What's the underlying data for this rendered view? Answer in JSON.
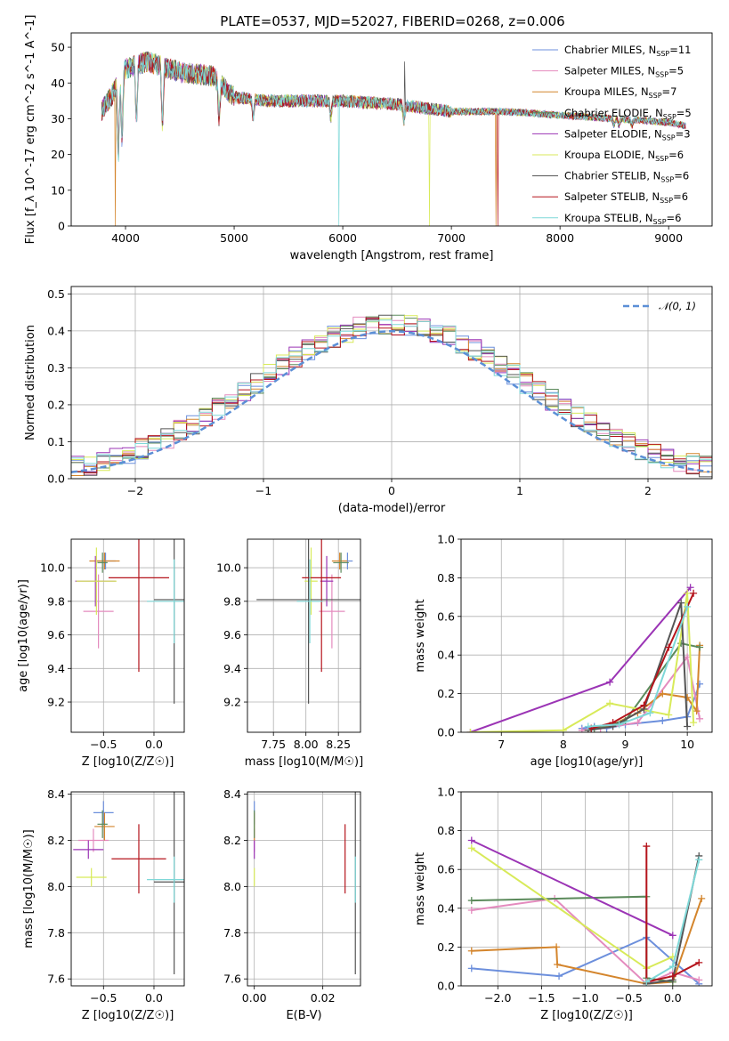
{
  "title": "PLATE=0537, MJD=52027, FIBERID=0268, z=0.006",
  "colors": [
    "#6c8fdc",
    "#e48bbe",
    "#d4852c",
    "#5b8a5b",
    "#9b34b5",
    "#d8ea59",
    "#555555",
    "#b5141c",
    "#7fd8d8"
  ],
  "models": [
    {
      "label": "Chabrier MILES, N",
      "n": "11"
    },
    {
      "label": "Salpeter MILES, N",
      "n": "5"
    },
    {
      "label": "Kroupa MILES, N",
      "n": "7"
    },
    {
      "label": "Chabrier ELODIE, N",
      "n": "5"
    },
    {
      "label": "Salpeter ELODIE, N",
      "n": "3"
    },
    {
      "label": "Kroupa ELODIE, N",
      "n": "6"
    },
    {
      "label": "Chabrier STELIB, N",
      "n": "6"
    },
    {
      "label": "Salpeter STELIB, N",
      "n": "6"
    },
    {
      "label": "Kroupa STELIB, N",
      "n": "6"
    }
  ],
  "legend_sub": "SSP",
  "chart_data": [
    {
      "id": "spectrum",
      "type": "line",
      "xlabel": "wavelength [Angstrom, rest frame]",
      "ylabel": "Flux [f_λ 10^-17 erg cm^-2 s^-1 A^-1]",
      "xlim": [
        3500,
        9400
      ],
      "ylim": [
        0,
        54
      ],
      "xticks": [
        4000,
        5000,
        6000,
        7000,
        8000,
        9000
      ],
      "yticks": [
        0,
        10,
        20,
        30,
        40,
        50
      ],
      "x_range_data": [
        3780,
        9160
      ],
      "continuum": [
        [
          3780,
          32
        ],
        [
          3900,
          38
        ],
        [
          4000,
          44
        ],
        [
          4200,
          46
        ],
        [
          4500,
          43
        ],
        [
          4800,
          42
        ],
        [
          5000,
          36
        ],
        [
          5300,
          35
        ],
        [
          5600,
          35
        ],
        [
          6000,
          35
        ],
        [
          6500,
          34
        ],
        [
          7000,
          32
        ],
        [
          7500,
          32
        ],
        [
          8000,
          31
        ],
        [
          8500,
          30
        ],
        [
          9000,
          29
        ],
        [
          9160,
          28
        ]
      ],
      "absorption": [
        [
          3934,
          18
        ],
        [
          3968,
          22
        ],
        [
          4101,
          28
        ],
        [
          4340,
          27
        ],
        [
          4861,
          30
        ],
        [
          5175,
          30
        ],
        [
          5890,
          30
        ],
        [
          6563,
          29
        ],
        [
          8498,
          28
        ],
        [
          8542,
          28
        ],
        [
          8662,
          28
        ]
      ],
      "glitches": [
        {
          "model": 2,
          "x": 3905,
          "y": 0
        },
        {
          "model": 8,
          "x": 5965,
          "y": 0
        },
        {
          "model": 5,
          "x": 6800,
          "y": 0
        },
        {
          "model": 2,
          "x": 7410,
          "y": 0
        },
        {
          "model": 6,
          "x": 6570,
          "y": 46
        },
        {
          "model": 7,
          "x": 7430,
          "y": 0
        }
      ],
      "legend": "top-right"
    },
    {
      "id": "residuals",
      "type": "histogram",
      "xlabel": "(data-model)/error",
      "ylabel": "Normed distribution",
      "xlim": [
        -2.5,
        2.5
      ],
      "ylim": [
        0,
        0.52
      ],
      "xticks": [
        -2,
        -1,
        0,
        1,
        2
      ],
      "yticks": [
        0.0,
        0.1,
        0.2,
        0.3,
        0.4,
        0.5
      ],
      "bin_width": 0.1,
      "gaussian_label": "𝒩(0, 1)",
      "legend": "top-right"
    },
    {
      "id": "age_vs_Z",
      "type": "errorbar",
      "xlabel": "Z [log10(Z/Z☉)]",
      "ylabel": "age [log10(age/yr)]",
      "xlim": [
        -0.82,
        0.3
      ],
      "ylim": [
        9.02,
        10.17
      ],
      "xticks": [
        -0.5,
        0.0
      ],
      "yticks": [
        9.2,
        9.4,
        9.6,
        9.8,
        10.0
      ],
      "points": [
        {
          "model": 0,
          "x": -0.48,
          "xerr": 0.1,
          "y": 10.04,
          "yerr": 0.05
        },
        {
          "model": 1,
          "x": -0.55,
          "xerr": 0.15,
          "y": 9.74,
          "yerr": 0.22
        },
        {
          "model": 2,
          "x": -0.49,
          "xerr": 0.15,
          "y": 10.04,
          "yerr": 0.05
        },
        {
          "model": 3,
          "x": -0.51,
          "xerr": 0.05,
          "y": 10.03,
          "yerr": 0.06
        },
        {
          "model": 4,
          "x": -0.58,
          "xerr": 0.2,
          "y": 9.92,
          "yerr": 0.15
        },
        {
          "model": 5,
          "x": -0.57,
          "xerr": 0.2,
          "y": 9.92,
          "yerr": 0.2
        },
        {
          "model": 6,
          "x": 0.2,
          "xerr": 0.2,
          "y": 9.81,
          "yerr": 0.62
        },
        {
          "model": 7,
          "x": -0.15,
          "xerr": 0.3,
          "y": 9.94,
          "yerr": 0.56
        },
        {
          "model": 8,
          "x": 0.2,
          "xerr": 0.27,
          "y": 9.8,
          "yerr": 0.25
        }
      ]
    },
    {
      "id": "age_vs_mass",
      "type": "errorbar",
      "xlabel": "mass [log10(M/M☉)]",
      "ylabel": "",
      "xlim": [
        7.55,
        8.42
      ],
      "ylim": [
        9.02,
        10.17
      ],
      "xticks": [
        7.75,
        8.0,
        8.25
      ],
      "yticks": [
        9.2,
        9.4,
        9.6,
        9.8,
        10.0
      ],
      "points": [
        {
          "model": 0,
          "x": 8.32,
          "xerr": 0.04,
          "y": 10.04,
          "yerr": 0.05
        },
        {
          "model": 1,
          "x": 8.2,
          "xerr": 0.1,
          "y": 9.74,
          "yerr": 0.22
        },
        {
          "model": 2,
          "x": 8.26,
          "xerr": 0.06,
          "y": 10.04,
          "yerr": 0.05
        },
        {
          "model": 3,
          "x": 8.27,
          "xerr": 0.06,
          "y": 10.03,
          "yerr": 0.06
        },
        {
          "model": 4,
          "x": 8.16,
          "xerr": 0.05,
          "y": 9.92,
          "yerr": 0.15
        },
        {
          "model": 5,
          "x": 8.04,
          "xerr": 0.05,
          "y": 9.92,
          "yerr": 0.2
        },
        {
          "model": 6,
          "x": 8.02,
          "xerr": 0.4,
          "y": 9.81,
          "yerr": 0.62
        },
        {
          "model": 7,
          "x": 8.12,
          "xerr": 0.15,
          "y": 9.94,
          "yerr": 0.56
        },
        {
          "model": 8,
          "x": 8.03,
          "xerr": 0.1,
          "y": 9.8,
          "yerr": 0.25
        }
      ]
    },
    {
      "id": "weight_vs_age",
      "type": "line",
      "xlabel": "age [log10(age/yr)]",
      "ylabel": "mass weight",
      "xlim": [
        6.35,
        10.4
      ],
      "ylim": [
        0,
        1.0
      ],
      "xticks": [
        7,
        8,
        9,
        10
      ],
      "yticks": [
        0.0,
        0.2,
        0.4,
        0.6,
        0.8,
        1.0
      ],
      "series": [
        {
          "model": 0,
          "x": [
            8.3,
            8.5,
            8.7,
            9.0,
            9.6,
            10.0,
            10.2
          ],
          "y": [
            0.02,
            0.03,
            0.02,
            0.04,
            0.06,
            0.08,
            0.25
          ]
        },
        {
          "model": 1,
          "x": [
            8.3,
            8.6,
            9.2,
            10.0,
            10.2
          ],
          "y": [
            0.01,
            0.02,
            0.05,
            0.39,
            0.07
          ]
        },
        {
          "model": 2,
          "x": [
            8.4,
            8.8,
            9.2,
            9.6,
            10.0,
            10.15,
            10.2
          ],
          "y": [
            0.01,
            0.04,
            0.1,
            0.2,
            0.18,
            0.11,
            0.45
          ]
        },
        {
          "model": 3,
          "x": [
            8.5,
            9.0,
            9.9,
            10.2
          ],
          "y": [
            0.02,
            0.06,
            0.46,
            0.44
          ]
        },
        {
          "model": 4,
          "x": [
            6.5,
            8.75,
            10.05
          ],
          "y": [
            0.0,
            0.26,
            0.75
          ]
        },
        {
          "model": 5,
          "x": [
            6.5,
            8.0,
            8.75,
            9.7,
            10.0,
            10.1
          ],
          "y": [
            0.0,
            0.01,
            0.15,
            0.09,
            0.72,
            0.05
          ]
        },
        {
          "model": 6,
          "x": [
            8.4,
            8.8,
            9.3,
            9.9,
            10.0
          ],
          "y": [
            0.01,
            0.03,
            0.12,
            0.67,
            0.03
          ]
        },
        {
          "model": 7,
          "x": [
            8.45,
            8.8,
            9.3,
            9.7,
            10.1
          ],
          "y": [
            0.02,
            0.05,
            0.14,
            0.44,
            0.72
          ]
        },
        {
          "model": 8,
          "x": [
            8.4,
            8.9,
            9.4,
            10.0
          ],
          "y": [
            0.03,
            0.04,
            0.1,
            0.65
          ]
        }
      ]
    },
    {
      "id": "mass_vs_Z",
      "type": "errorbar",
      "xlabel": "Z [log10(Z/Z☉)]",
      "ylabel": "mass [log10(M/M☉)]",
      "xlim": [
        -0.82,
        0.3
      ],
      "ylim": [
        7.57,
        8.41
      ],
      "xticks": [
        -0.5,
        0.0
      ],
      "yticks": [
        7.6,
        7.8,
        8.0,
        8.2,
        8.4
      ],
      "points": [
        {
          "model": 0,
          "x": -0.5,
          "xerr": 0.1,
          "y": 8.32,
          "yerr": 0.05
        },
        {
          "model": 1,
          "x": -0.6,
          "xerr": 0.15,
          "y": 8.2,
          "yerr": 0.05
        },
        {
          "model": 2,
          "x": -0.49,
          "xerr": 0.1,
          "y": 8.26,
          "yerr": 0.06
        },
        {
          "model": 3,
          "x": -0.51,
          "xerr": 0.05,
          "y": 8.27,
          "yerr": 0.06
        },
        {
          "model": 4,
          "x": -0.65,
          "xerr": 0.15,
          "y": 8.16,
          "yerr": 0.04
        },
        {
          "model": 5,
          "x": -0.62,
          "xerr": 0.15,
          "y": 8.04,
          "yerr": 0.04
        },
        {
          "model": 6,
          "x": 0.2,
          "xerr": 0.2,
          "y": 8.02,
          "yerr": 0.4
        },
        {
          "model": 7,
          "x": -0.15,
          "xerr": 0.27,
          "y": 8.12,
          "yerr": 0.15
        },
        {
          "model": 8,
          "x": 0.2,
          "xerr": 0.27,
          "y": 8.03,
          "yerr": 0.1
        }
      ]
    },
    {
      "id": "mass_vs_ebv",
      "type": "errorbar",
      "xlabel": "E(B-V)",
      "ylabel": "",
      "xlim": [
        -0.002,
        0.031
      ],
      "ylim": [
        7.57,
        8.41
      ],
      "xticks": [
        0.0,
        0.02
      ],
      "yticks": [
        7.6,
        7.8,
        8.0,
        8.2,
        8.4
      ],
      "points": [
        {
          "model": 0,
          "x": 0.0,
          "xerr": 0,
          "y": 8.32,
          "yerr": 0.05
        },
        {
          "model": 1,
          "x": 0.0,
          "xerr": 0,
          "y": 8.2,
          "yerr": 0.05
        },
        {
          "model": 2,
          "x": 0.0,
          "xerr": 0,
          "y": 8.26,
          "yerr": 0.06
        },
        {
          "model": 3,
          "x": 0.0,
          "xerr": 0,
          "y": 8.27,
          "yerr": 0.06
        },
        {
          "model": 4,
          "x": 0.0,
          "xerr": 0,
          "y": 8.16,
          "yerr": 0.04
        },
        {
          "model": 5,
          "x": 0.0,
          "xerr": 0,
          "y": 8.04,
          "yerr": 0.04
        },
        {
          "model": 6,
          "x": 0.0295,
          "xerr": 0,
          "y": 8.02,
          "yerr": 0.4
        },
        {
          "model": 7,
          "x": 0.0265,
          "xerr": 0,
          "y": 8.12,
          "yerr": 0.15
        },
        {
          "model": 8,
          "x": 0.0295,
          "xerr": 0,
          "y": 8.03,
          "yerr": 0.1
        }
      ]
    },
    {
      "id": "weight_vs_Z",
      "type": "line",
      "xlabel": "Z [log10(Z/Z☉)]",
      "ylabel": "mass weight",
      "xlim": [
        -2.42,
        0.45
      ],
      "ylim": [
        0,
        1.0
      ],
      "xticks": [
        -2.0,
        -1.5,
        -1.0,
        -0.5,
        0.0
      ],
      "yticks": [
        0.0,
        0.2,
        0.4,
        0.6,
        0.8,
        1.0
      ],
      "series": [
        {
          "model": 0,
          "x": [
            -2.3,
            -1.3,
            -0.3,
            0.3
          ],
          "y": [
            0.09,
            0.05,
            0.25,
            0.01
          ]
        },
        {
          "model": 1,
          "x": [
            -2.3,
            -1.35,
            -0.3,
            0.0,
            0.3
          ],
          "y": [
            0.39,
            0.45,
            0.01,
            0.07,
            0.03
          ]
        },
        {
          "model": 2,
          "x": [
            -2.3,
            -1.33,
            -1.32,
            -0.3,
            0.0,
            0.33
          ],
          "y": [
            0.18,
            0.2,
            0.11,
            0.01,
            0.02,
            0.45
          ]
        },
        {
          "model": 3,
          "x": [
            -2.3,
            -0.3,
            -0.3,
            0.0
          ],
          "y": [
            0.44,
            0.46,
            0.04,
            0.02
          ]
        },
        {
          "model": 4,
          "x": [
            -2.3,
            0.0
          ],
          "y": [
            0.75,
            0.26
          ]
        },
        {
          "model": 5,
          "x": [
            -2.3,
            -0.3,
            0.0
          ],
          "y": [
            0.71,
            0.09,
            0.15
          ]
        },
        {
          "model": 6,
          "x": [
            -0.3,
            0.0,
            0.3
          ],
          "y": [
            0.01,
            0.03,
            0.67
          ]
        },
        {
          "model": 7,
          "x": [
            -0.3,
            -0.3,
            0.0,
            0.3
          ],
          "y": [
            0.72,
            0.02,
            0.05,
            0.12
          ]
        },
        {
          "model": 8,
          "x": [
            -0.3,
            0.0,
            0.3
          ],
          "y": [
            0.02,
            0.1,
            0.65
          ]
        }
      ]
    }
  ]
}
